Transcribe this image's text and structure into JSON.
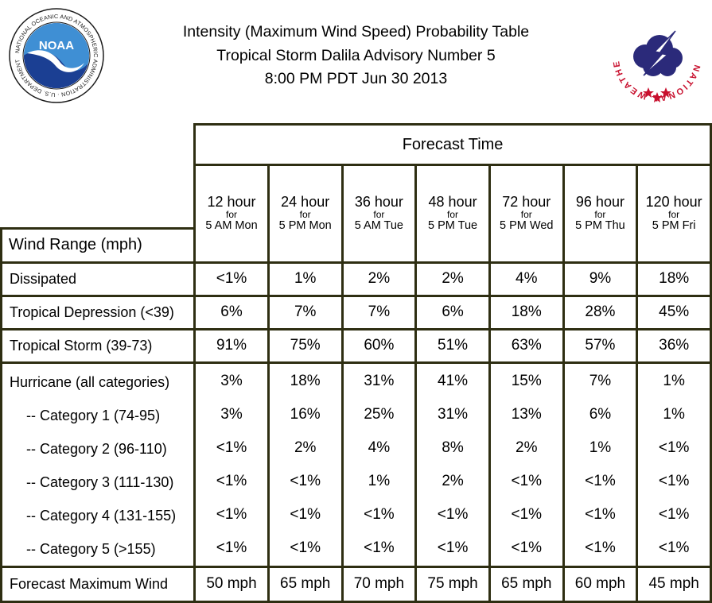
{
  "title": {
    "line1": "Intensity (Maximum Wind Speed) Probability Table",
    "line2": "Tropical Storm Dalila Advisory Number 5",
    "line3": "8:00 PM PDT Jun 30 2013"
  },
  "logos": {
    "noaa_text": "NOAA",
    "noaa_ring": "NATIONAL OCEANIC AND ATMOSPHERIC ADMINISTRATION · U.S. DEPARTMENT OF COMMERCE ·",
    "nws_ring": "NATIONAL WEATHER SERVICE"
  },
  "table": {
    "forecast_time_label": "Forecast Time",
    "wind_range_label": "Wind Range (mph)",
    "columns": [
      {
        "hours": "12 hour",
        "for": "for",
        "when": "5 AM Mon"
      },
      {
        "hours": "24 hour",
        "for": "for",
        "when": "5 PM Mon"
      },
      {
        "hours": "36 hour",
        "for": "for",
        "when": "5 AM Tue"
      },
      {
        "hours": "48 hour",
        "for": "for",
        "when": "5 PM Tue"
      },
      {
        "hours": "72 hour",
        "for": "for",
        "when": "5 PM Wed"
      },
      {
        "hours": "96 hour",
        "for": "for",
        "when": "5 PM Thu"
      },
      {
        "hours": "120 hour",
        "for": "for",
        "when": "5 PM Fri"
      }
    ],
    "rows": {
      "dissipated": {
        "label": "Dissipated",
        "values": [
          "<1%",
          "1%",
          "2%",
          "2%",
          "4%",
          "9%",
          "18%"
        ]
      },
      "td": {
        "label": "Tropical Depression (<39)",
        "values": [
          "6%",
          "7%",
          "7%",
          "6%",
          "18%",
          "28%",
          "45%"
        ]
      },
      "ts": {
        "label": "Tropical Storm (39-73)",
        "values": [
          "91%",
          "75%",
          "60%",
          "51%",
          "63%",
          "57%",
          "36%"
        ]
      },
      "hurricane": {
        "label": "Hurricane (all categories)",
        "values": [
          "3%",
          "18%",
          "31%",
          "41%",
          "15%",
          "7%",
          "1%"
        ],
        "categories": [
          {
            "label": "-- Category 1 (74-95)",
            "values": [
              "3%",
              "16%",
              "25%",
              "31%",
              "13%",
              "6%",
              "1%"
            ]
          },
          {
            "label": "-- Category 2 (96-110)",
            "values": [
              "<1%",
              "2%",
              "4%",
              "8%",
              "2%",
              "1%",
              "<1%"
            ]
          },
          {
            "label": "-- Category 3 (111-130)",
            "values": [
              "<1%",
              "<1%",
              "1%",
              "2%",
              "<1%",
              "<1%",
              "<1%"
            ]
          },
          {
            "label": "-- Category 4 (131-155)",
            "values": [
              "<1%",
              "<1%",
              "<1%",
              "<1%",
              "<1%",
              "<1%",
              "<1%"
            ]
          },
          {
            "label": "-- Category 5 (>155)",
            "values": [
              "<1%",
              "<1%",
              "<1%",
              "<1%",
              "<1%",
              "<1%",
              "<1%"
            ]
          }
        ]
      },
      "fmw": {
        "label": "Forecast Maximum Wind",
        "values": [
          "50 mph",
          "65 mph",
          "70 mph",
          "75 mph",
          "65 mph",
          "60 mph",
          "45 mph"
        ]
      }
    }
  },
  "colors": {
    "border": "#2e2e12",
    "noaa_blue": "#1b3f93",
    "nws_red": "#c8102e",
    "nws_cloud": "#2b2a7a"
  }
}
